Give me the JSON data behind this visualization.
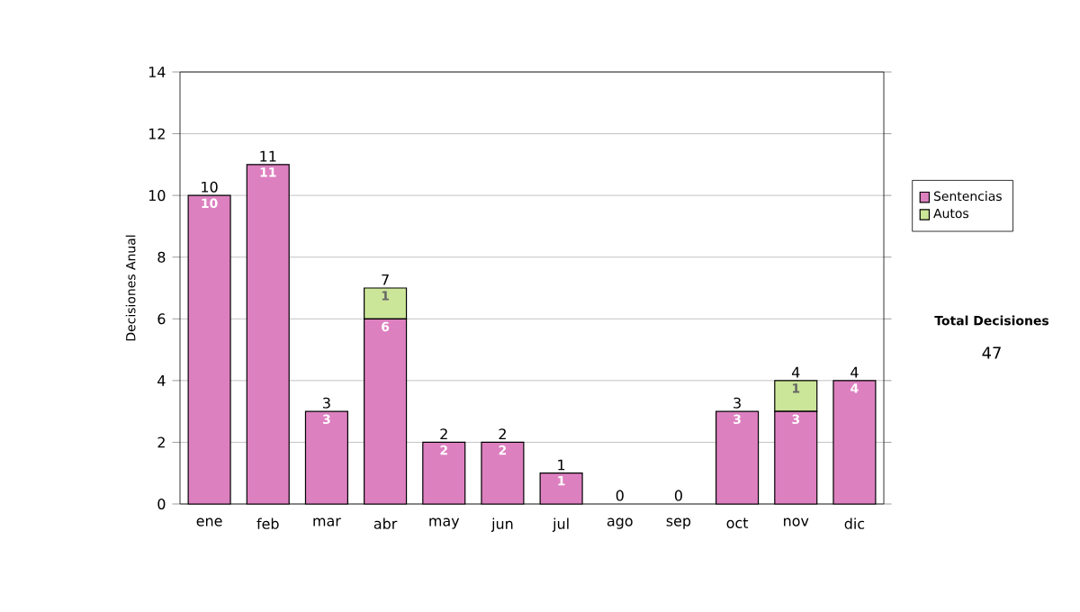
{
  "chart_data": {
    "type": "bar",
    "stacked": true,
    "ylabel": "Decisiones Anual",
    "categories": [
      "ene",
      "feb",
      "mar",
      "abr",
      "may",
      "jun",
      "jul",
      "ago",
      "sep",
      "oct",
      "nov",
      "dic"
    ],
    "series": [
      {
        "name": "Sentencias",
        "color": "#dd80c0",
        "values": [
          10,
          11,
          3,
          6,
          2,
          2,
          1,
          0,
          0,
          3,
          3,
          4
        ],
        "value_labels": [
          "10",
          "11",
          "3",
          "6",
          "2",
          "2",
          "1",
          null,
          null,
          "3",
          "3",
          "4"
        ]
      },
      {
        "name": "Autos",
        "color": "#cce699",
        "values": [
          0,
          0,
          0,
          1,
          0,
          0,
          0,
          0,
          0,
          0,
          1,
          0
        ],
        "value_labels": [
          null,
          null,
          null,
          "1",
          null,
          null,
          null,
          null,
          null,
          null,
          "1",
          null
        ]
      }
    ],
    "totals": [
      "10",
      "11",
      "3",
      "7",
      "2",
      "2",
      "1",
      "0",
      "0",
      "3",
      "4",
      "4"
    ],
    "ylim": [
      0,
      14
    ],
    "yticks": [
      0,
      2,
      4,
      6,
      8,
      10,
      12,
      14
    ],
    "grid": "y",
    "legend": "right",
    "annotations": [
      "Total Decisiones",
      "47"
    ]
  }
}
